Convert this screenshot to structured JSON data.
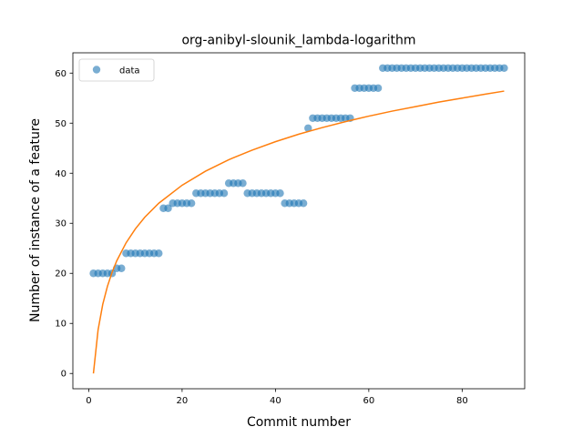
{
  "chart_data": {
    "type": "scatter",
    "title": "org-anibyl-slounik_lambda-logarithm",
    "xlabel": "Commit number",
    "ylabel": "Number of instance of a feature",
    "xlim": [
      -3.4,
      93.4
    ],
    "ylim": [
      -3.05,
      64.05
    ],
    "xticks": [
      0,
      20,
      40,
      60,
      80
    ],
    "yticks": [
      0,
      10,
      20,
      30,
      40,
      50,
      60
    ],
    "grid": false,
    "legend": {
      "placement": "top-left",
      "entries": [
        "data"
      ]
    },
    "series": [
      {
        "name": "data",
        "kind": "scatter",
        "color": "#1f77b4",
        "alpha": 0.6,
        "x": [
          1,
          2,
          3,
          4,
          5,
          6,
          7,
          8,
          9,
          10,
          11,
          12,
          13,
          14,
          15,
          16,
          17,
          18,
          19,
          20,
          21,
          22,
          23,
          24,
          25,
          26,
          27,
          28,
          29,
          30,
          31,
          32,
          33,
          34,
          35,
          36,
          37,
          38,
          39,
          40,
          41,
          42,
          43,
          44,
          45,
          46,
          47,
          48,
          49,
          50,
          51,
          52,
          53,
          54,
          55,
          56,
          57,
          58,
          59,
          60,
          61,
          62,
          63,
          64,
          65,
          66,
          67,
          68,
          69,
          70,
          71,
          72,
          73,
          74,
          75,
          76,
          77,
          78,
          79,
          80,
          81,
          82,
          83,
          84,
          85,
          86,
          87,
          88,
          89
        ],
        "y": [
          20,
          20,
          20,
          20,
          20,
          21,
          21,
          24,
          24,
          24,
          24,
          24,
          24,
          24,
          24,
          33,
          33,
          34,
          34,
          34,
          34,
          34,
          36,
          36,
          36,
          36,
          36,
          36,
          36,
          38,
          38,
          38,
          38,
          36,
          36,
          36,
          36,
          36,
          36,
          36,
          36,
          34,
          34,
          34,
          34,
          34,
          49,
          51,
          51,
          51,
          51,
          51,
          51,
          51,
          51,
          51,
          57,
          57,
          57,
          57,
          57,
          57,
          61,
          61,
          61,
          61,
          61,
          61,
          61,
          61,
          61,
          61,
          61,
          61,
          61,
          61,
          61,
          61,
          61,
          61,
          61,
          61,
          61,
          61,
          61,
          61,
          61,
          61,
          61
        ]
      },
      {
        "name": "",
        "kind": "line",
        "color": "#ff7f0e",
        "x": [
          1,
          2,
          3,
          4,
          5,
          6,
          8,
          10,
          12,
          15,
          20,
          25,
          30,
          35,
          40,
          45,
          50,
          55,
          60,
          65,
          70,
          75,
          80,
          85,
          89
        ],
        "y": [
          0,
          8.7,
          13.8,
          17.4,
          20.2,
          22.5,
          26.1,
          28.9,
          31.2,
          34.0,
          37.6,
          40.4,
          42.7,
          44.6,
          46.3,
          47.8,
          49.1,
          50.3,
          51.4,
          52.4,
          53.3,
          54.2,
          55.0,
          55.8,
          56.4
        ]
      }
    ]
  }
}
